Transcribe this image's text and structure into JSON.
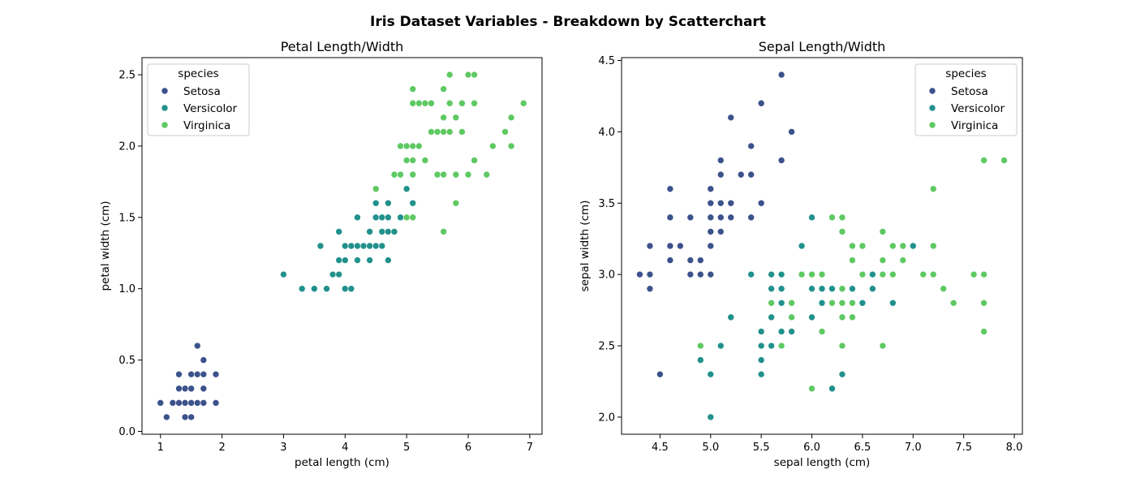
{
  "suptitle": "Iris Dataset Variables - Breakdown by Scatterchart",
  "chart_data": [
    {
      "type": "scatter",
      "title": "Petal Length/Width",
      "xlabel": "petal length (cm)",
      "ylabel": "petal width (cm)",
      "xlim": [
        0.7,
        7.2
      ],
      "ylim": [
        -0.02,
        2.62
      ],
      "xticks": [
        1,
        2,
        3,
        4,
        5,
        6,
        7
      ],
      "yticks": [
        0.0,
        0.5,
        1.0,
        1.5,
        2.0,
        2.5
      ],
      "xtick_labels": [
        "1",
        "2",
        "3",
        "4",
        "5",
        "6",
        "7"
      ],
      "ytick_labels": [
        "0.0",
        "0.5",
        "1.0",
        "1.5",
        "2.0",
        "2.5"
      ],
      "grid": false,
      "legend": {
        "title": "species",
        "placement": "top-left"
      },
      "series": [
        {
          "name": "Setosa",
          "color": "#3b528b",
          "points": [
            [
              1.0,
              0.2
            ],
            [
              1.1,
              0.1
            ],
            [
              1.2,
              0.2
            ],
            [
              1.3,
              0.2
            ],
            [
              1.3,
              0.3
            ],
            [
              1.3,
              0.4
            ],
            [
              1.4,
              0.1
            ],
            [
              1.4,
              0.2
            ],
            [
              1.4,
              0.3
            ],
            [
              1.5,
              0.1
            ],
            [
              1.5,
              0.2
            ],
            [
              1.5,
              0.3
            ],
            [
              1.5,
              0.4
            ],
            [
              1.6,
              0.2
            ],
            [
              1.6,
              0.4
            ],
            [
              1.6,
              0.6
            ],
            [
              1.7,
              0.2
            ],
            [
              1.7,
              0.3
            ],
            [
              1.7,
              0.4
            ],
            [
              1.7,
              0.5
            ],
            [
              1.9,
              0.2
            ],
            [
              1.9,
              0.4
            ]
          ]
        },
        {
          "name": "Versicolor",
          "color": "#21918c",
          "points": [
            [
              3.0,
              1.1
            ],
            [
              3.3,
              1.0
            ],
            [
              3.5,
              1.0
            ],
            [
              3.6,
              1.3
            ],
            [
              3.7,
              1.0
            ],
            [
              3.8,
              1.1
            ],
            [
              3.9,
              1.1
            ],
            [
              3.9,
              1.2
            ],
            [
              3.9,
              1.4
            ],
            [
              4.0,
              1.0
            ],
            [
              4.0,
              1.2
            ],
            [
              4.0,
              1.3
            ],
            [
              4.1,
              1.0
            ],
            [
              4.1,
              1.3
            ],
            [
              4.2,
              1.2
            ],
            [
              4.2,
              1.3
            ],
            [
              4.2,
              1.5
            ],
            [
              4.3,
              1.3
            ],
            [
              4.4,
              1.2
            ],
            [
              4.4,
              1.3
            ],
            [
              4.4,
              1.4
            ],
            [
              4.5,
              1.3
            ],
            [
              4.5,
              1.5
            ],
            [
              4.5,
              1.6
            ],
            [
              4.6,
              1.3
            ],
            [
              4.6,
              1.4
            ],
            [
              4.6,
              1.5
            ],
            [
              4.7,
              1.2
            ],
            [
              4.7,
              1.4
            ],
            [
              4.7,
              1.5
            ],
            [
              4.7,
              1.6
            ],
            [
              4.8,
              1.4
            ],
            [
              4.8,
              1.8
            ],
            [
              4.9,
              1.5
            ],
            [
              5.0,
              1.7
            ],
            [
              5.1,
              1.6
            ]
          ]
        },
        {
          "name": "Virginica",
          "color": "#5ec962",
          "points": [
            [
              4.5,
              1.7
            ],
            [
              4.8,
              1.8
            ],
            [
              4.9,
              1.8
            ],
            [
              4.9,
              2.0
            ],
            [
              5.0,
              1.5
            ],
            [
              5.0,
              1.9
            ],
            [
              5.0,
              2.0
            ],
            [
              5.1,
              1.5
            ],
            [
              5.1,
              1.8
            ],
            [
              5.1,
              1.9
            ],
            [
              5.1,
              2.0
            ],
            [
              5.1,
              2.3
            ],
            [
              5.1,
              2.4
            ],
            [
              5.2,
              2.0
            ],
            [
              5.2,
              2.3
            ],
            [
              5.3,
              1.9
            ],
            [
              5.3,
              2.3
            ],
            [
              5.4,
              2.1
            ],
            [
              5.4,
              2.3
            ],
            [
              5.5,
              1.8
            ],
            [
              5.5,
              2.1
            ],
            [
              5.6,
              1.4
            ],
            [
              5.6,
              1.8
            ],
            [
              5.6,
              2.1
            ],
            [
              5.6,
              2.2
            ],
            [
              5.6,
              2.4
            ],
            [
              5.7,
              2.1
            ],
            [
              5.7,
              2.3
            ],
            [
              5.7,
              2.5
            ],
            [
              5.8,
              1.6
            ],
            [
              5.8,
              1.8
            ],
            [
              5.8,
              2.2
            ],
            [
              5.9,
              2.1
            ],
            [
              5.9,
              2.3
            ],
            [
              6.0,
              1.8
            ],
            [
              6.0,
              2.5
            ],
            [
              6.1,
              1.9
            ],
            [
              6.1,
              2.3
            ],
            [
              6.1,
              2.5
            ],
            [
              6.3,
              1.8
            ],
            [
              6.4,
              2.0
            ],
            [
              6.6,
              2.1
            ],
            [
              6.7,
              2.0
            ],
            [
              6.7,
              2.2
            ],
            [
              6.9,
              2.3
            ]
          ]
        }
      ]
    },
    {
      "type": "scatter",
      "title": "Sepal Length/Width",
      "xlabel": "sepal length (cm)",
      "ylabel": "sepal width (cm)",
      "xlim": [
        4.12,
        8.08
      ],
      "ylim": [
        1.88,
        4.52
      ],
      "xticks": [
        4.5,
        5.0,
        5.5,
        6.0,
        6.5,
        7.0,
        7.5,
        8.0
      ],
      "yticks": [
        2.0,
        2.5,
        3.0,
        3.5,
        4.0,
        4.5
      ],
      "xtick_labels": [
        "4.5",
        "5.0",
        "5.5",
        "6.0",
        "6.5",
        "7.0",
        "7.5",
        "8.0"
      ],
      "ytick_labels": [
        "2.0",
        "2.5",
        "3.0",
        "3.5",
        "4.0",
        "4.5"
      ],
      "grid": false,
      "legend": {
        "title": "species",
        "placement": "top-right"
      },
      "series": [
        {
          "name": "Setosa",
          "color": "#3b528b",
          "points": [
            [
              4.3,
              3.0
            ],
            [
              4.4,
              2.9
            ],
            [
              4.4,
              3.0
            ],
            [
              4.4,
              3.2
            ],
            [
              4.5,
              2.3
            ],
            [
              4.6,
              3.1
            ],
            [
              4.6,
              3.2
            ],
            [
              4.6,
              3.4
            ],
            [
              4.6,
              3.6
            ],
            [
              4.7,
              3.2
            ],
            [
              4.8,
              3.0
            ],
            [
              4.8,
              3.1
            ],
            [
              4.8,
              3.4
            ],
            [
              4.9,
              3.0
            ],
            [
              4.9,
              3.1
            ],
            [
              5.0,
              3.0
            ],
            [
              5.0,
              3.2
            ],
            [
              5.0,
              3.3
            ],
            [
              5.0,
              3.4
            ],
            [
              5.0,
              3.5
            ],
            [
              5.0,
              3.6
            ],
            [
              5.1,
              3.3
            ],
            [
              5.1,
              3.4
            ],
            [
              5.1,
              3.5
            ],
            [
              5.1,
              3.7
            ],
            [
              5.1,
              3.8
            ],
            [
              5.2,
              3.4
            ],
            [
              5.2,
              3.5
            ],
            [
              5.2,
              4.1
            ],
            [
              5.3,
              3.7
            ],
            [
              5.4,
              3.4
            ],
            [
              5.4,
              3.7
            ],
            [
              5.4,
              3.9
            ],
            [
              5.5,
              3.5
            ],
            [
              5.5,
              4.2
            ],
            [
              5.7,
              3.8
            ],
            [
              5.7,
              4.4
            ],
            [
              5.8,
              4.0
            ]
          ]
        },
        {
          "name": "Versicolor",
          "color": "#21918c",
          "points": [
            [
              4.9,
              2.4
            ],
            [
              5.0,
              2.0
            ],
            [
              5.0,
              2.3
            ],
            [
              5.1,
              2.5
            ],
            [
              5.2,
              2.7
            ],
            [
              5.4,
              3.0
            ],
            [
              5.5,
              2.3
            ],
            [
              5.5,
              2.4
            ],
            [
              5.5,
              2.5
            ],
            [
              5.5,
              2.6
            ],
            [
              5.6,
              2.5
            ],
            [
              5.6,
              2.7
            ],
            [
              5.6,
              2.9
            ],
            [
              5.6,
              3.0
            ],
            [
              5.7,
              2.6
            ],
            [
              5.7,
              2.8
            ],
            [
              5.7,
              2.9
            ],
            [
              5.7,
              3.0
            ],
            [
              5.8,
              2.6
            ],
            [
              5.8,
              2.7
            ],
            [
              5.9,
              3.0
            ],
            [
              5.9,
              3.2
            ],
            [
              6.0,
              2.2
            ],
            [
              6.0,
              2.7
            ],
            [
              6.0,
              2.9
            ],
            [
              6.0,
              3.4
            ],
            [
              6.1,
              2.8
            ],
            [
              6.1,
              2.9
            ],
            [
              6.1,
              3.0
            ],
            [
              6.2,
              2.2
            ],
            [
              6.2,
              2.9
            ],
            [
              6.3,
              2.3
            ],
            [
              6.3,
              2.5
            ],
            [
              6.3,
              3.3
            ],
            [
              6.4,
              2.9
            ],
            [
              6.4,
              3.2
            ],
            [
              6.5,
              2.8
            ],
            [
              6.6,
              2.9
            ],
            [
              6.6,
              3.0
            ],
            [
              6.7,
              3.0
            ],
            [
              6.7,
              3.1
            ],
            [
              6.8,
              2.8
            ],
            [
              6.9,
              3.1
            ],
            [
              7.0,
              3.2
            ]
          ]
        },
        {
          "name": "Virginica",
          "color": "#5ec962",
          "points": [
            [
              4.9,
              2.5
            ],
            [
              5.6,
              2.8
            ],
            [
              5.7,
              2.5
            ],
            [
              5.8,
              2.7
            ],
            [
              5.8,
              2.8
            ],
            [
              5.9,
              3.0
            ],
            [
              6.0,
              2.2
            ],
            [
              6.0,
              3.0
            ],
            [
              6.1,
              2.6
            ],
            [
              6.1,
              3.0
            ],
            [
              6.2,
              2.8
            ],
            [
              6.2,
              3.4
            ],
            [
              6.3,
              2.5
            ],
            [
              6.3,
              2.7
            ],
            [
              6.3,
              2.8
            ],
            [
              6.3,
              2.9
            ],
            [
              6.3,
              3.3
            ],
            [
              6.3,
              3.4
            ],
            [
              6.4,
              2.7
            ],
            [
              6.4,
              2.8
            ],
            [
              6.4,
              3.1
            ],
            [
              6.4,
              3.2
            ],
            [
              6.5,
              3.0
            ],
            [
              6.5,
              3.2
            ],
            [
              6.7,
              2.5
            ],
            [
              6.7,
              3.0
            ],
            [
              6.7,
              3.1
            ],
            [
              6.7,
              3.3
            ],
            [
              6.8,
              3.0
            ],
            [
              6.8,
              3.2
            ],
            [
              6.9,
              3.1
            ],
            [
              6.9,
              3.2
            ],
            [
              7.1,
              3.0
            ],
            [
              7.2,
              3.0
            ],
            [
              7.2,
              3.2
            ],
            [
              7.2,
              3.6
            ],
            [
              7.3,
              2.9
            ],
            [
              7.4,
              2.8
            ],
            [
              7.6,
              3.0
            ],
            [
              7.7,
              2.6
            ],
            [
              7.7,
              2.8
            ],
            [
              7.7,
              3.0
            ],
            [
              7.7,
              3.8
            ],
            [
              7.9,
              3.8
            ]
          ]
        }
      ]
    }
  ]
}
